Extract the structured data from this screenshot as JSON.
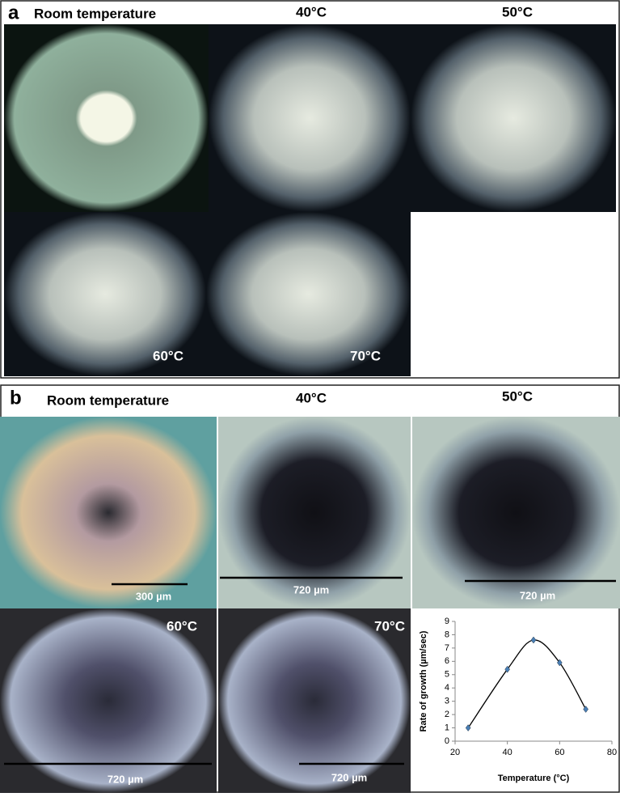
{
  "panels": [
    {
      "label": "a",
      "captions": [
        "Room temperature",
        "40°C",
        "50°C",
        "60°C",
        "70°C"
      ]
    },
    {
      "label": "b",
      "captions": [
        "Room temperature",
        "40°C",
        "50°C",
        "60°C",
        "70°C"
      ],
      "scale_bars": [
        "300 µm",
        "720 µm",
        "720 µm",
        "720 µm",
        "720 µm"
      ]
    }
  ],
  "chart_data": {
    "type": "line",
    "x_label": "Temperature (°C)",
    "y_label": "Rate of growth (µm/sec)",
    "x": [
      25,
      40,
      50,
      60,
      70
    ],
    "series": [
      {
        "color": "#4a7fb5",
        "values": [
          1.0,
          5.4,
          7.6,
          5.9,
          2.4
        ]
      }
    ],
    "xlim": [
      20,
      80
    ],
    "xticks": [
      20,
      40,
      60,
      80
    ],
    "ylim": [
      0,
      9
    ],
    "yticks": [
      0,
      1,
      2,
      3,
      4,
      5,
      6,
      7,
      8,
      9
    ]
  }
}
